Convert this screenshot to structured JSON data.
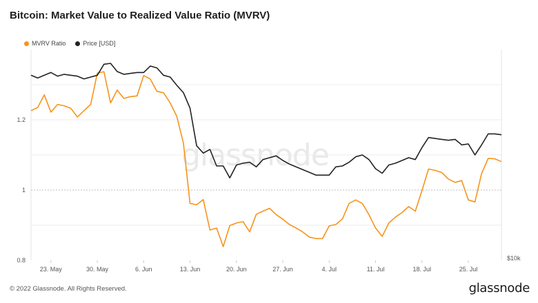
{
  "header": {
    "title": "Bitcoin: Market Value to Realized Value Ratio (MVRV)"
  },
  "legend": {
    "mvrv_label": "MVRV Ratio",
    "price_label": "Price [USD]"
  },
  "watermark": "glassnode",
  "footer": {
    "copyright": "© 2022 Glassnode. All Rights Reserved.",
    "brand": "glassnode"
  },
  "colors": {
    "mvrv": "#f7931a",
    "price": "#222222",
    "grid": "#ececec",
    "reference": "#bdbdbd"
  },
  "chart_data": {
    "type": "line",
    "title": "Bitcoin: Market Value to Realized Value Ratio (MVRV)",
    "x_ticks": [
      "23. May",
      "30. May",
      "6. Jun",
      "13. Jun",
      "20. Jun",
      "27. Jun",
      "4. Jul",
      "11. Jul",
      "18. Jul",
      "25. Jul"
    ],
    "x_start": "2022-05-20",
    "left_axis": {
      "ticks": [
        "0.8",
        "1",
        "1.2"
      ],
      "ylim": [
        0.8,
        1.4
      ]
    },
    "right_axis": {
      "ticks": [
        "$10k"
      ],
      "ylim": [
        10000,
        33000
      ]
    },
    "reference_line": 1,
    "series": [
      {
        "name": "MVRV Ratio",
        "axis": "left",
        "values": [
          1.226,
          1.235,
          1.271,
          1.222,
          1.244,
          1.24,
          1.233,
          1.208,
          1.226,
          1.244,
          1.333,
          1.337,
          1.248,
          1.285,
          1.261,
          1.266,
          1.268,
          1.326,
          1.316,
          1.281,
          1.277,
          1.248,
          1.21,
          1.134,
          0.962,
          0.958,
          0.973,
          0.886,
          0.892,
          0.839,
          0.899,
          0.906,
          0.91,
          0.881,
          0.931,
          0.94,
          0.948,
          0.93,
          0.917,
          0.902,
          0.892,
          0.881,
          0.866,
          0.862,
          0.862,
          0.898,
          0.902,
          0.918,
          0.962,
          0.972,
          0.962,
          0.93,
          0.892,
          0.868,
          0.906,
          0.923,
          0.936,
          0.953,
          0.94,
          0.998,
          1.06,
          1.056,
          1.05,
          1.031,
          1.022,
          1.027,
          0.972,
          0.966,
          1.047,
          1.09,
          1.089,
          1.081
        ]
      },
      {
        "name": "Price [USD]",
        "axis": "right",
        "values": [
          30200,
          29900,
          30200,
          30500,
          30100,
          30300,
          30200,
          30100,
          29800,
          30000,
          30200,
          31400,
          31500,
          30600,
          30300,
          30400,
          30500,
          30500,
          31200,
          31000,
          30200,
          30000,
          29100,
          28300,
          26600,
          22500,
          21700,
          22100,
          20300,
          20300,
          19000,
          20400,
          20600,
          20700,
          20200,
          21000,
          21200,
          21400,
          20900,
          20500,
          20200,
          19900,
          19600,
          19300,
          19300,
          19300,
          20200,
          20300,
          20700,
          21300,
          21500,
          21000,
          20000,
          19500,
          20400,
          20600,
          20900,
          21200,
          21000,
          22300,
          23400,
          23300,
          23200,
          23100,
          23200,
          22600,
          22700,
          21500,
          22600,
          23800,
          23800,
          23700
        ]
      }
    ]
  }
}
